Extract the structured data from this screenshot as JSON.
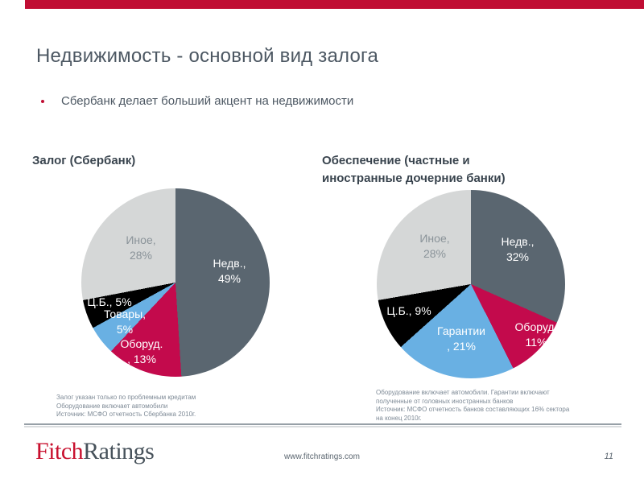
{
  "slide": {
    "title": "Недвижимость - основной вид залога",
    "bullet": "Сбербанк делает больший акцент на недвижимости"
  },
  "chart_data": [
    {
      "type": "pie",
      "title": "Залог (Сбербанк)",
      "title_lines": [
        "Залог (Сбербанк)"
      ],
      "categories": [
        "Недв.",
        "Оборуд.",
        "Товары",
        "Ц.Б.",
        "Иное"
      ],
      "values": [
        49,
        13,
        5,
        5,
        28
      ],
      "unit": "%",
      "colors": [
        "#5A6670",
        "#C30A4C",
        "#69B0E3",
        "#000000",
        "#D5D7D7"
      ],
      "start_angle_deg": 0,
      "direction": "clockwise",
      "legend": "none",
      "slice_labels": [
        {
          "l1": "Недв.,",
          "l2": "49%"
        },
        {
          "l1": "Оборуд.",
          "l2": ", 13%"
        },
        {
          "l1": "Товары,",
          "l2": "5%"
        },
        {
          "l1": "Ц.Б., 5%",
          "l2": ""
        },
        {
          "l1": "Иное,",
          "l2": "28%"
        }
      ],
      "footnote_lines": [
        "Залог указан  только по проблемным кредитам",
        "Оборудование включает автомобили",
        "Источник: МСФО отчетность Сбербанка 2010г."
      ]
    },
    {
      "type": "pie",
      "title": "Обеспечение (частные и иностранные дочерние банки)",
      "title_lines": [
        "Обеспечение (частные и",
        "иностранные дочерние банки)"
      ],
      "categories": [
        "Недв.",
        "Оборуд.",
        "Гарантии",
        "Ц.Б.",
        "Иное"
      ],
      "values": [
        32,
        11,
        21,
        9,
        28
      ],
      "unit": "%",
      "colors": [
        "#5A6670",
        "#C30A4C",
        "#69B0E3",
        "#000000",
        "#D5D7D7"
      ],
      "start_angle_deg": 0,
      "direction": "clockwise",
      "legend": "none",
      "slice_labels": [
        {
          "l1": "Недв.,",
          "l2": "32%"
        },
        {
          "l1": "Оборуд,",
          "l2": "11%"
        },
        {
          "l1": "Гарантии",
          "l2": ", 21%"
        },
        {
          "l1": "Ц.Б., 9%",
          "l2": ""
        },
        {
          "l1": "Иное,",
          "l2": "28%"
        }
      ],
      "footnote_lines": [
        "Оборудование включает автомобили. Гарантии включают",
        "полученные от головных иностранных банков",
        "Источник: МСФО отчетность банков составляющих 16% сектора",
        "на конец 2010г."
      ]
    }
  ],
  "footer": {
    "logo_fitch": "Fitch",
    "logo_ratings": "Ratings",
    "url": "www.fitchratings.com",
    "page": "11"
  },
  "colors": {
    "accent_red": "#C00D33",
    "title_text": "#4D5863",
    "chart_title_text": "#39444E",
    "pie_slate": "#5A6670",
    "pie_red": "#C30A4C",
    "pie_blue": "#69B0E3",
    "pie_black": "#000000",
    "pie_light_gray": "#D5D7D7",
    "pie_label_muted": "#8A9399",
    "footnote_text": "#7E8A96",
    "logo_red": "#C8102E",
    "logo_gray": "#47525B"
  }
}
